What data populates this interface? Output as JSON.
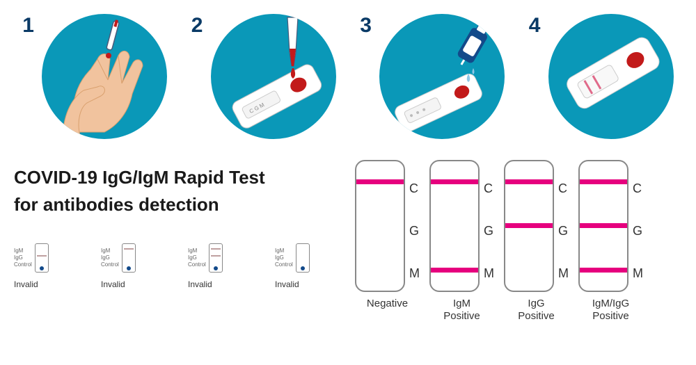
{
  "theme": {
    "circle_bg": "#0a98b8",
    "step_number_color": "#0a3a66",
    "step_number_fontsize": 30,
    "line_control": "#e6007e",
    "line_test": "#e6007e",
    "line_faint": "#bfa0a0",
    "skin_color": "#f1c39e",
    "skin_shadow": "#d9a06e",
    "blood_color": "#c21a1a",
    "bottle_color": "#134a8a",
    "title_color": "#1a1a1a",
    "title_fontsize": 26,
    "result_label_fontsize": 18,
    "invalid_label_fontsize": 12,
    "strip_border": "#888888"
  },
  "steps": [
    {
      "n": "1",
      "desc": "finger-prick"
    },
    {
      "n": "2",
      "desc": "add-blood"
    },
    {
      "n": "3",
      "desc": "add-buffer"
    },
    {
      "n": "4",
      "desc": "read-result"
    }
  ],
  "title_line1": "COVID-19 IgG/IgM Rapid Test",
  "title_line2": "for antibodies detection",
  "invalid": {
    "band_labels": [
      "IgM",
      "IgG",
      "Control"
    ],
    "label": "Invalid",
    "items": [
      {
        "C": false,
        "G": true,
        "M": false
      },
      {
        "C": false,
        "G": false,
        "M": true
      },
      {
        "C": false,
        "G": true,
        "M": true
      },
      {
        "C": false,
        "G": false,
        "M": false
      }
    ]
  },
  "results": {
    "band_labels": [
      "C",
      "G",
      "M"
    ],
    "band_positions_pct": [
      14,
      48,
      82
    ],
    "items": [
      {
        "caption1": "Negative",
        "caption2": "",
        "C": true,
        "G": false,
        "M": false
      },
      {
        "caption1": "IgM",
        "caption2": "Positive",
        "C": true,
        "G": false,
        "M": true
      },
      {
        "caption1": "IgG",
        "caption2": "Positive",
        "C": true,
        "G": true,
        "M": false
      },
      {
        "caption1": "IgM/IgG",
        "caption2": "Positive",
        "C": true,
        "G": true,
        "M": true
      }
    ]
  }
}
